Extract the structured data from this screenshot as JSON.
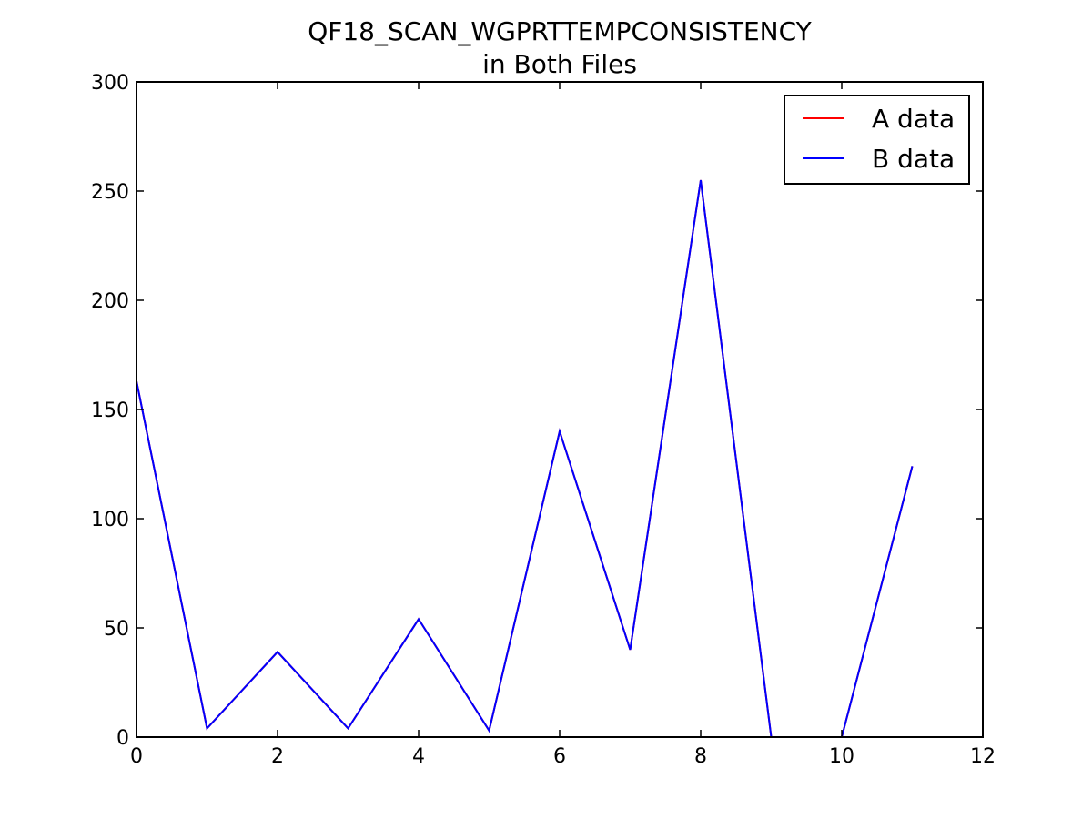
{
  "chart_data": {
    "type": "line",
    "title_line1": "QF18_SCAN_WGPRTTEMPCONSISTENCY",
    "title_line2": "in Both Files",
    "xlabel": "",
    "ylabel": "",
    "xlim": [
      0,
      12
    ],
    "ylim": [
      0,
      300
    ],
    "x_ticks": [
      0,
      2,
      4,
      6,
      8,
      10,
      12
    ],
    "y_ticks": [
      0,
      50,
      100,
      150,
      200,
      250,
      300
    ],
    "grid": false,
    "legend_position": "top-right",
    "x": [
      0,
      1,
      2,
      3,
      4,
      5,
      6,
      7,
      8,
      9,
      10,
      11
    ],
    "series": [
      {
        "name": "A data",
        "color": "#ff0000",
        "values": [
          163,
          4,
          39,
          4,
          54,
          3,
          140,
          40,
          255,
          0,
          0,
          124
        ]
      },
      {
        "name": "B data",
        "color": "#0000ff",
        "values": [
          163,
          4,
          39,
          4,
          54,
          3,
          140,
          40,
          255,
          0,
          0,
          124
        ]
      }
    ]
  }
}
